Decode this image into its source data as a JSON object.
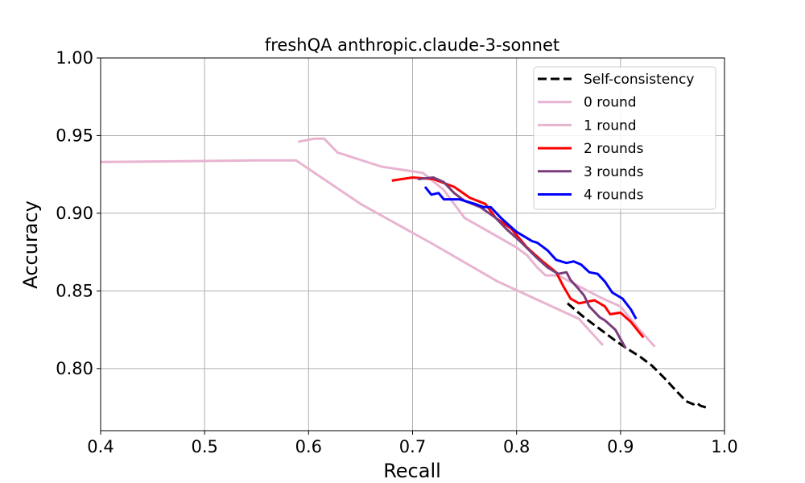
{
  "chart_data": {
    "type": "line",
    "title": "freshQA anthropic.claude-3-sonnet",
    "xlabel": "Recall",
    "ylabel": "Accuracy",
    "xlim": [
      0.4,
      1.0
    ],
    "ylim": [
      0.76,
      1.0
    ],
    "xticks": [
      0.4,
      0.5,
      0.6,
      0.7,
      0.8,
      0.9,
      1.0
    ],
    "xtick_labels": [
      "0.4",
      "0.5",
      "0.6",
      "0.7",
      "0.8",
      "0.9",
      "1.0"
    ],
    "yticks": [
      0.8,
      0.85,
      0.9,
      0.95,
      1.0
    ],
    "ytick_labels": [
      "0.80",
      "0.85",
      "0.90",
      "0.95",
      "1.00"
    ],
    "grid": true,
    "legend_position": "top-right",
    "series": [
      {
        "name": "Self-consistency",
        "color": "#000000",
        "dashed": true,
        "points": [
          [
            0.849,
            0.842
          ],
          [
            0.856,
            0.838
          ],
          [
            0.865,
            0.833
          ],
          [
            0.875,
            0.828
          ],
          [
            0.885,
            0.823
          ],
          [
            0.895,
            0.818
          ],
          [
            0.906,
            0.813
          ],
          [
            0.918,
            0.808
          ],
          [
            0.93,
            0.802
          ],
          [
            0.942,
            0.794
          ],
          [
            0.953,
            0.786
          ],
          [
            0.963,
            0.779
          ],
          [
            0.97,
            0.777
          ],
          [
            0.973,
            0.778
          ],
          [
            0.977,
            0.776
          ],
          [
            0.982,
            0.775
          ]
        ]
      },
      {
        "name": "0 round",
        "color": "#e8b4d1",
        "dashed": false,
        "points": [
          [
            0.4,
            0.933
          ],
          [
            0.55,
            0.934
          ],
          [
            0.588,
            0.934
          ],
          [
            0.65,
            0.906
          ],
          [
            0.72,
            0.88
          ],
          [
            0.782,
            0.856
          ],
          [
            0.86,
            0.832
          ],
          [
            0.883,
            0.815
          ]
        ]
      },
      {
        "name": "1 round",
        "color": "#e8b4d1",
        "dashed": false,
        "points": [
          [
            0.59,
            0.946
          ],
          [
            0.605,
            0.948
          ],
          [
            0.615,
            0.948
          ],
          [
            0.628,
            0.939
          ],
          [
            0.633,
            0.938
          ],
          [
            0.67,
            0.93
          ],
          [
            0.71,
            0.926
          ],
          [
            0.73,
            0.915
          ],
          [
            0.75,
            0.897
          ],
          [
            0.8,
            0.878
          ],
          [
            0.81,
            0.873
          ],
          [
            0.82,
            0.865
          ],
          [
            0.828,
            0.86
          ],
          [
            0.84,
            0.86
          ],
          [
            0.86,
            0.853
          ],
          [
            0.88,
            0.846
          ],
          [
            0.9,
            0.84
          ],
          [
            0.917,
            0.826
          ],
          [
            0.933,
            0.814
          ]
        ]
      },
      {
        "name": "2 rounds",
        "color": "#ff0000",
        "dashed": false,
        "points": [
          [
            0.68,
            0.921
          ],
          [
            0.7,
            0.923
          ],
          [
            0.72,
            0.922
          ],
          [
            0.74,
            0.917
          ],
          [
            0.755,
            0.91
          ],
          [
            0.77,
            0.906
          ],
          [
            0.78,
            0.897
          ],
          [
            0.795,
            0.89
          ],
          [
            0.81,
            0.878
          ],
          [
            0.825,
            0.869
          ],
          [
            0.838,
            0.862
          ],
          [
            0.845,
            0.853
          ],
          [
            0.852,
            0.845
          ],
          [
            0.86,
            0.842
          ],
          [
            0.875,
            0.844
          ],
          [
            0.885,
            0.84
          ],
          [
            0.89,
            0.835
          ],
          [
            0.9,
            0.836
          ],
          [
            0.91,
            0.83
          ],
          [
            0.922,
            0.82
          ]
        ]
      },
      {
        "name": "3 rounds",
        "color": "#7a3c7a",
        "dashed": false,
        "points": [
          [
            0.705,
            0.922
          ],
          [
            0.72,
            0.923
          ],
          [
            0.73,
            0.92
          ],
          [
            0.74,
            0.913
          ],
          [
            0.75,
            0.908
          ],
          [
            0.765,
            0.904
          ],
          [
            0.78,
            0.897
          ],
          [
            0.79,
            0.89
          ],
          [
            0.805,
            0.881
          ],
          [
            0.82,
            0.871
          ],
          [
            0.83,
            0.865
          ],
          [
            0.84,
            0.861
          ],
          [
            0.848,
            0.862
          ],
          [
            0.852,
            0.857
          ],
          [
            0.86,
            0.851
          ],
          [
            0.865,
            0.847
          ],
          [
            0.87,
            0.84
          ],
          [
            0.88,
            0.833
          ],
          [
            0.885,
            0.831
          ],
          [
            0.895,
            0.825
          ],
          [
            0.905,
            0.813
          ]
        ]
      },
      {
        "name": "4 rounds",
        "color": "#0000ff",
        "dashed": false,
        "points": [
          [
            0.712,
            0.917
          ],
          [
            0.718,
            0.912
          ],
          [
            0.725,
            0.913
          ],
          [
            0.73,
            0.909
          ],
          [
            0.745,
            0.909
          ],
          [
            0.76,
            0.906
          ],
          [
            0.768,
            0.904
          ],
          [
            0.775,
            0.904
          ],
          [
            0.785,
            0.897
          ],
          [
            0.8,
            0.888
          ],
          [
            0.815,
            0.882
          ],
          [
            0.82,
            0.881
          ],
          [
            0.83,
            0.876
          ],
          [
            0.838,
            0.87
          ],
          [
            0.848,
            0.868
          ],
          [
            0.855,
            0.869
          ],
          [
            0.862,
            0.867
          ],
          [
            0.87,
            0.862
          ],
          [
            0.878,
            0.861
          ],
          [
            0.885,
            0.856
          ],
          [
            0.892,
            0.849
          ],
          [
            0.902,
            0.845
          ],
          [
            0.91,
            0.838
          ],
          [
            0.915,
            0.832
          ]
        ]
      }
    ]
  }
}
